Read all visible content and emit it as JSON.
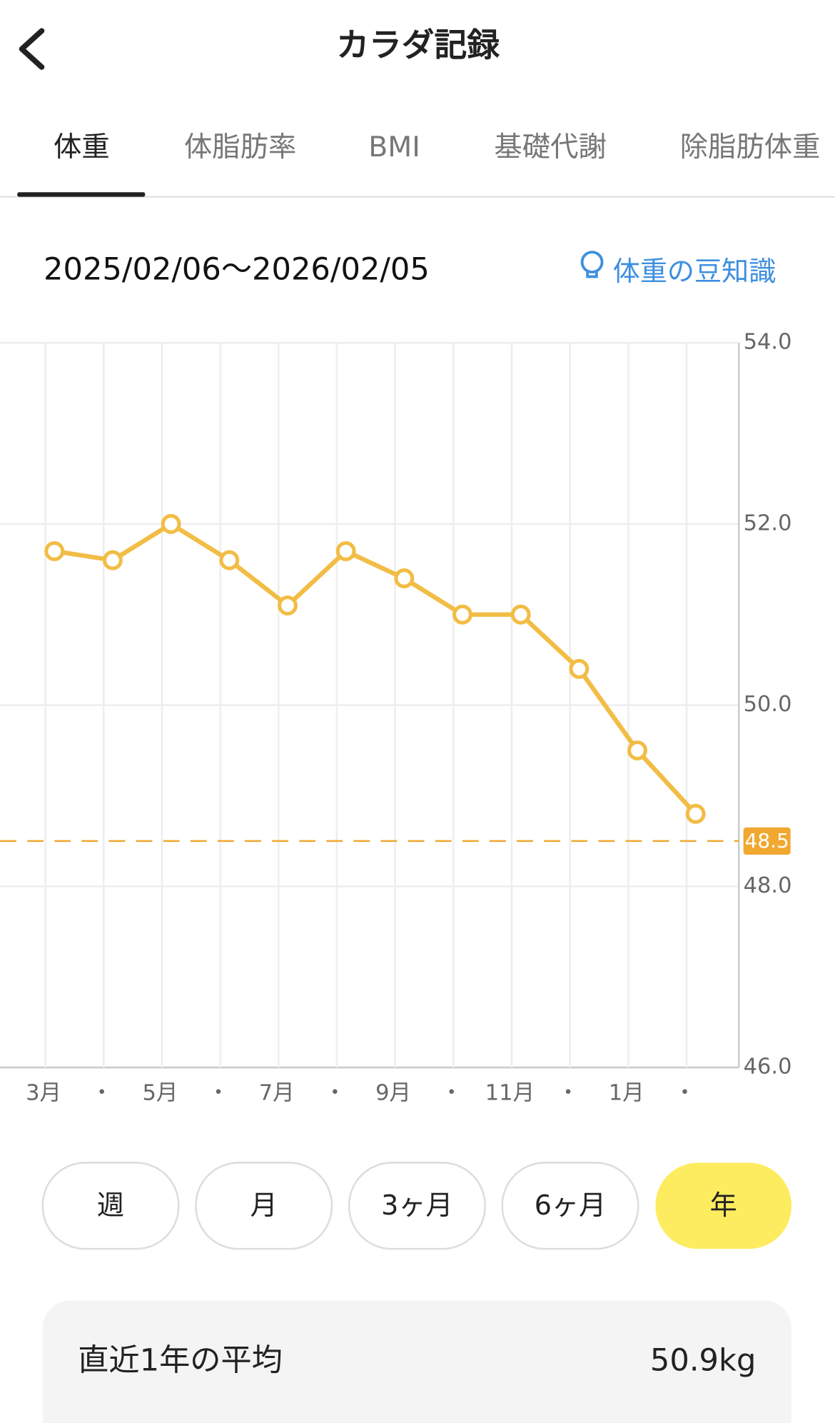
{
  "header": {
    "title": "カラダ記録"
  },
  "tabs": [
    "体重",
    "体脂肪率",
    "BMI",
    "基礎代謝",
    "除脂肪体重"
  ],
  "date_range": "2025/02/06〜2026/02/05",
  "tips_link": "体重の豆知識",
  "chart_data": {
    "type": "line",
    "categories": [
      "3月",
      "・",
      "5月",
      "・",
      "7月",
      "・",
      "9月",
      "・",
      "11月",
      "・",
      "1月",
      "・"
    ],
    "series": [
      {
        "color": "#f2bd45",
        "values": [
          51.7,
          51.6,
          52.0,
          51.6,
          51.1,
          51.7,
          51.4,
          51.0,
          51.0,
          50.4,
          49.5,
          48.8
        ]
      }
    ],
    "ylim": [
      46,
      54
    ],
    "yticks": [
      {
        "value": 46,
        "label": "46.0"
      },
      {
        "value": 48,
        "label": "48.0"
      },
      {
        "value": 50,
        "label": "50.0"
      },
      {
        "value": 52,
        "label": "52.0"
      },
      {
        "value": 54,
        "label": "54.0"
      }
    ],
    "grid": true,
    "target": 48.5,
    "target_color": "#f0a830"
  },
  "periods": [
    "週",
    "月",
    "3ヶ月",
    "6ヶ月",
    "年"
  ],
  "summary": {
    "label": "直近1年の平均",
    "value": "50.9kg"
  }
}
